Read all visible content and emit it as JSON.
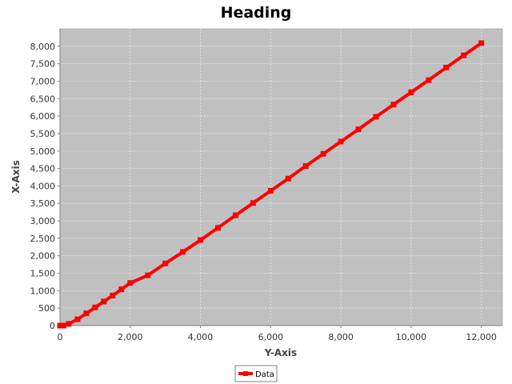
{
  "chart_data": {
    "type": "line",
    "title": "Heading",
    "xlabel": "Y-Axis",
    "ylabel": "X-Axis",
    "xlim": [
      0,
      12600
    ],
    "ylim": [
      0,
      8500
    ],
    "xticks": [
      0,
      2000,
      4000,
      6000,
      8000,
      10000,
      12000
    ],
    "xtick_labels": [
      "0",
      "2,000",
      "4,000",
      "6,000",
      "8,000",
      "10,000",
      "12,000"
    ],
    "yticks": [
      0,
      500,
      1000,
      1500,
      2000,
      2500,
      3000,
      3500,
      4000,
      4500,
      5000,
      5500,
      6000,
      6500,
      7000,
      7500,
      8000
    ],
    "ytick_labels": [
      "0",
      "500",
      "1,000",
      "1,500",
      "2,000",
      "2,500",
      "3,000",
      "3,500",
      "4,000",
      "4,500",
      "5,000",
      "5,500",
      "6,000",
      "6,500",
      "7,000",
      "7,500",
      "8,000"
    ],
    "grid": true,
    "legend_position": "bottom",
    "colors": {
      "series": "#ff0000",
      "plot_bg": "#c0c0c0",
      "grid": "#e6e6e6"
    },
    "series": [
      {
        "name": "Data",
        "x": [
          0,
          100,
          250,
          500,
          750,
          1000,
          1250,
          1500,
          1750,
          2000,
          2500,
          3000,
          3500,
          4000,
          4500,
          5000,
          5500,
          6000,
          6500,
          7000,
          7500,
          8000,
          8500,
          9000,
          9500,
          10000,
          10500,
          11000,
          11500,
          12000
        ],
        "y": [
          0,
          0,
          50,
          180,
          350,
          520,
          690,
          860,
          1040,
          1220,
          1440,
          1780,
          2110,
          2450,
          2800,
          3160,
          3510,
          3860,
          4210,
          4570,
          4920,
          5270,
          5620,
          5980,
          6330,
          6680,
          7030,
          7390,
          7740,
          8090
        ]
      }
    ]
  }
}
